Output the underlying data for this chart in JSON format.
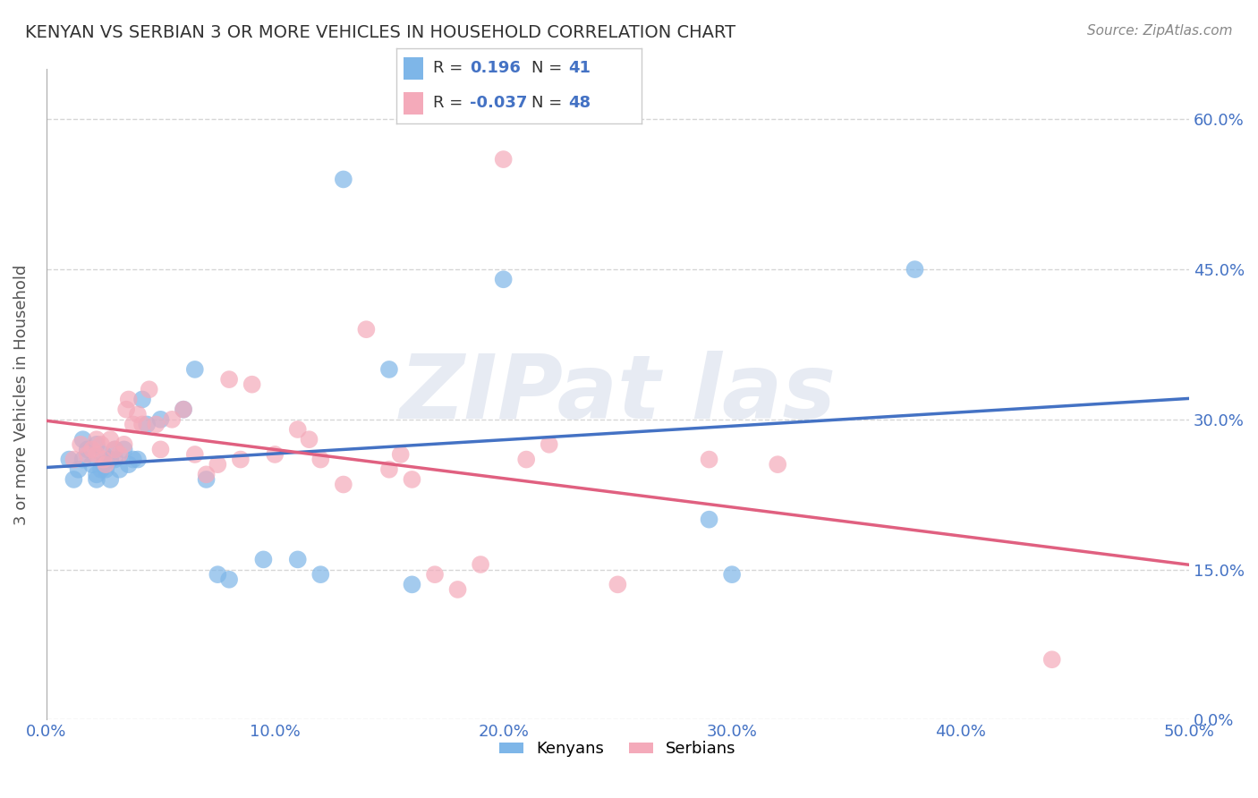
{
  "title": "KENYAN VS SERBIAN 3 OR MORE VEHICLES IN HOUSEHOLD CORRELATION CHART",
  "source": "Source: ZipAtlas.com",
  "ylabel": "3 or more Vehicles in Household",
  "xlabel": "",
  "xlim": [
    0.0,
    0.5
  ],
  "ylim": [
    0.0,
    0.65
  ],
  "xticks": [
    0.0,
    0.1,
    0.2,
    0.3,
    0.4,
    0.5
  ],
  "yticks": [
    0.0,
    0.15,
    0.3,
    0.45,
    0.6
  ],
  "xticklabels": [
    "0.0%",
    "10.0%",
    "20.0%",
    "30.0%",
    "40.0%",
    "50.0%"
  ],
  "yticklabels": [
    "0.0%",
    "15.0%",
    "30.0%",
    "45.0%",
    "60.0%"
  ],
  "kenyan_R": 0.196,
  "kenyan_N": 41,
  "serbian_R": -0.037,
  "serbian_N": 48,
  "kenyan_color": "#7EB6E8",
  "serbian_color": "#F4AABA",
  "kenyan_line_color": "#4472C4",
  "serbian_line_color": "#E06080",
  "legend_kenyan_label": "Kenyans",
  "legend_serbian_label": "Serbians",
  "kenyan_x": [
    0.01,
    0.012,
    0.014,
    0.016,
    0.016,
    0.018,
    0.02,
    0.022,
    0.022,
    0.022,
    0.024,
    0.025,
    0.025,
    0.026,
    0.028,
    0.028,
    0.03,
    0.03,
    0.032,
    0.034,
    0.036,
    0.038,
    0.04,
    0.042,
    0.044,
    0.05,
    0.06,
    0.065,
    0.07,
    0.075,
    0.08,
    0.095,
    0.11,
    0.12,
    0.13,
    0.15,
    0.16,
    0.2,
    0.29,
    0.3,
    0.38
  ],
  "kenyan_y": [
    0.26,
    0.24,
    0.25,
    0.26,
    0.28,
    0.27,
    0.255,
    0.24,
    0.245,
    0.275,
    0.25,
    0.255,
    0.265,
    0.25,
    0.24,
    0.26,
    0.26,
    0.27,
    0.25,
    0.27,
    0.255,
    0.26,
    0.26,
    0.32,
    0.295,
    0.3,
    0.31,
    0.35,
    0.24,
    0.145,
    0.14,
    0.16,
    0.16,
    0.145,
    0.54,
    0.35,
    0.135,
    0.44,
    0.2,
    0.145,
    0.45
  ],
  "serbian_x": [
    0.012,
    0.015,
    0.018,
    0.02,
    0.022,
    0.022,
    0.024,
    0.025,
    0.026,
    0.028,
    0.03,
    0.032,
    0.034,
    0.035,
    0.036,
    0.038,
    0.04,
    0.042,
    0.045,
    0.048,
    0.05,
    0.055,
    0.06,
    0.065,
    0.07,
    0.075,
    0.08,
    0.085,
    0.09,
    0.1,
    0.11,
    0.115,
    0.12,
    0.13,
    0.14,
    0.15,
    0.155,
    0.16,
    0.17,
    0.18,
    0.19,
    0.2,
    0.21,
    0.22,
    0.25,
    0.29,
    0.32,
    0.44
  ],
  "serbian_y": [
    0.26,
    0.275,
    0.265,
    0.27,
    0.265,
    0.28,
    0.275,
    0.26,
    0.255,
    0.28,
    0.27,
    0.265,
    0.275,
    0.31,
    0.32,
    0.295,
    0.305,
    0.295,
    0.33,
    0.295,
    0.27,
    0.3,
    0.31,
    0.265,
    0.245,
    0.255,
    0.34,
    0.26,
    0.335,
    0.265,
    0.29,
    0.28,
    0.26,
    0.235,
    0.39,
    0.25,
    0.265,
    0.24,
    0.145,
    0.13,
    0.155,
    0.56,
    0.26,
    0.275,
    0.135,
    0.26,
    0.255,
    0.06
  ],
  "background_color": "#FFFFFF",
  "grid_color": "#CCCCCC",
  "title_color": "#333333",
  "axis_label_color": "#555555",
  "tick_color": "#4472C4",
  "watermark_color": "#D0D8E8",
  "watermark_alpha": 0.5
}
